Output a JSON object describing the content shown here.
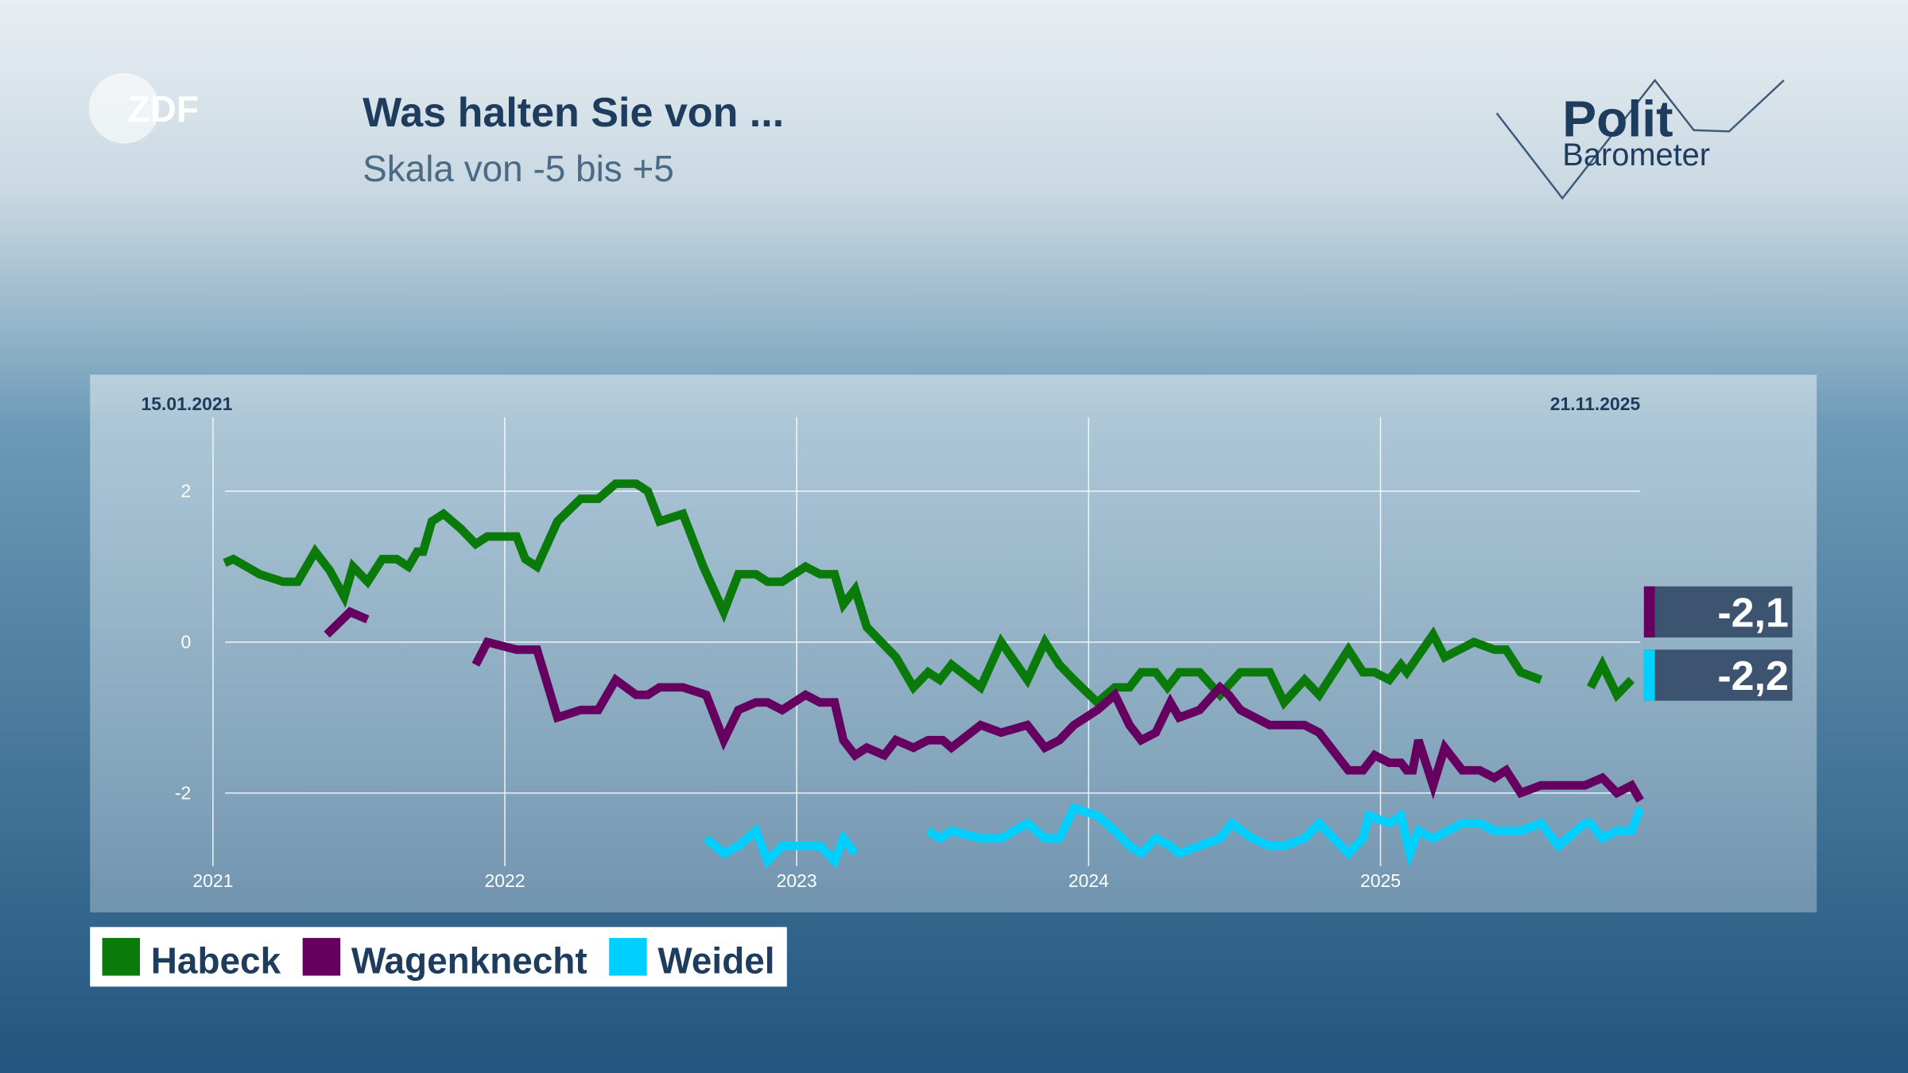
{
  "branding": {
    "broadcaster": "ZDF",
    "program_line1": "Polit",
    "program_line2": "Barometer"
  },
  "chart_data": {
    "type": "line",
    "title": "Was halten Sie von ...",
    "subtitle": "Skala von -5 bis +5",
    "start_date": "15.01.2021",
    "end_date": "21.11.2025",
    "xlim": [
      2021,
      2025.89
    ],
    "xticks": [
      2021,
      2022,
      2023,
      2024,
      2025
    ],
    "ylim": [
      -2.97,
      2.98
    ],
    "yticks": [
      -2,
      0,
      2
    ],
    "grid": true,
    "legend": "below-left",
    "series": [
      {
        "name": "Habeck",
        "color": "#0a7a0a",
        "x": [
          2021.04,
          2021.07,
          2021.16,
          2021.24,
          2021.29,
          2021.35,
          2021.4,
          2021.45,
          2021.48,
          2021.53,
          2021.58,
          2021.63,
          2021.67,
          2021.7,
          2021.72,
          2021.75,
          2021.79,
          2021.85,
          2021.9,
          2021.94,
          2022.04,
          2022.07,
          2022.11,
          2022.18,
          2022.26,
          2022.32,
          2022.38,
          2022.45,
          2022.49,
          2022.53,
          2022.61,
          2022.68,
          2022.75,
          2022.8,
          2022.86,
          2022.9,
          2022.95,
          2023.03,
          2023.08,
          2023.13,
          2023.16,
          2023.2,
          2023.24,
          2023.29,
          2023.34,
          2023.4,
          2023.45,
          2023.49,
          2023.53,
          2023.63,
          2023.7,
          2023.79,
          2023.85,
          2023.9,
          2023.95,
          2024.03,
          2024.09,
          2024.14,
          2024.18,
          2024.23,
          2024.27,
          2024.31,
          2024.38,
          2024.45,
          2024.52,
          2024.62,
          2024.67,
          2024.74,
          2024.79,
          2024.89,
          2024.94,
          2024.98,
          2025.03,
          2025.07,
          2025.09,
          2025.18,
          2025.22,
          2025.32,
          2025.39,
          2025.43,
          2025.48,
          2025.55,
          2025.63,
          2025.72,
          2025.76,
          2025.81,
          2025.86
        ],
        "values": [
          1.05,
          1.1,
          0.9,
          0.8,
          0.8,
          1.2,
          0.95,
          0.6,
          1.0,
          0.8,
          1.1,
          1.1,
          1.0,
          1.2,
          1.2,
          1.6,
          1.7,
          1.5,
          1.3,
          1.4,
          1.4,
          1.1,
          1.0,
          1.6,
          1.9,
          1.9,
          2.1,
          2.1,
          2.0,
          1.6,
          1.7,
          1.0,
          0.4,
          0.9,
          0.9,
          0.8,
          0.8,
          1.0,
          0.9,
          0.9,
          0.5,
          0.7,
          0.2,
          0.0,
          -0.2,
          -0.6,
          -0.4,
          -0.5,
          -0.3,
          -0.6,
          0.0,
          -0.5,
          0.0,
          -0.3,
          -0.5,
          -0.8,
          -0.6,
          -0.6,
          -0.4,
          -0.4,
          -0.6,
          -0.4,
          -0.4,
          -0.7,
          -0.4,
          -0.4,
          -0.8,
          -0.5,
          -0.7,
          -0.1,
          -0.4,
          -0.4,
          -0.5,
          -0.3,
          -0.4,
          0.1,
          -0.2,
          0.0,
          -0.1,
          -0.1,
          -0.4,
          -0.5,
          null,
          -0.6,
          -0.3,
          -0.7,
          -0.5
        ]
      },
      {
        "name": "Wagenknecht",
        "color": "#650060",
        "x": [
          2021.39,
          2021.47,
          2021.53,
          2021.7,
          2021.9,
          2021.94,
          2022.04,
          2022.11,
          2022.18,
          2022.26,
          2022.32,
          2022.38,
          2022.45,
          2022.49,
          2022.53,
          2022.61,
          2022.69,
          2022.75,
          2022.8,
          2022.86,
          2022.9,
          2022.95,
          2023.03,
          2023.08,
          2023.13,
          2023.16,
          2023.2,
          2023.24,
          2023.3,
          2023.34,
          2023.4,
          2023.45,
          2023.5,
          2023.53,
          2023.63,
          2023.7,
          2023.79,
          2023.85,
          2023.9,
          2023.95,
          2024.03,
          2024.09,
          2024.14,
          2024.18,
          2024.23,
          2024.28,
          2024.31,
          2024.38,
          2024.45,
          2024.48,
          2024.52,
          2024.62,
          2024.74,
          2024.79,
          2024.89,
          2024.94,
          2024.98,
          2025.03,
          2025.07,
          2025.09,
          2025.11,
          2025.13,
          2025.18,
          2025.22,
          2025.28,
          2025.34,
          2025.39,
          2025.43,
          2025.48,
          2025.55,
          2025.7,
          2025.76,
          2025.81,
          2025.86,
          2025.89
        ],
        "values": [
          0.1,
          0.4,
          0.3,
          null,
          -0.3,
          0.0,
          -0.1,
          -0.1,
          -1.0,
          -0.9,
          -0.9,
          -0.5,
          -0.7,
          -0.7,
          -0.6,
          -0.6,
          -0.7,
          -1.3,
          -0.9,
          -0.8,
          -0.8,
          -0.9,
          -0.7,
          -0.8,
          -0.8,
          -1.3,
          -1.5,
          -1.4,
          -1.5,
          -1.3,
          -1.4,
          -1.3,
          -1.3,
          -1.4,
          -1.1,
          -1.2,
          -1.1,
          -1.4,
          -1.3,
          -1.1,
          -0.9,
          -0.7,
          -1.1,
          -1.3,
          -1.2,
          -0.8,
          -1.0,
          -0.9,
          -0.6,
          -0.7,
          -0.9,
          -1.1,
          -1.1,
          -1.2,
          -1.7,
          -1.7,
          -1.5,
          -1.6,
          -1.6,
          -1.7,
          -1.7,
          -1.3,
          -1.9,
          -1.4,
          -1.7,
          -1.7,
          -1.8,
          -1.7,
          -2.0,
          -1.9,
          -1.9,
          -1.8,
          -2.0,
          -1.9,
          -2.1
        ],
        "end_label": {
          "value": -2.1,
          "label": "-2,1"
        }
      },
      {
        "name": "Weidel",
        "color": "#00cfff",
        "x": [
          2022.69,
          2022.75,
          2022.8,
          2022.86,
          2022.9,
          2022.95,
          2023.03,
          2023.08,
          2023.13,
          2023.16,
          2023.2,
          2023.33,
          2023.45,
          2023.49,
          2023.53,
          2023.63,
          2023.7,
          2023.79,
          2023.85,
          2023.9,
          2023.95,
          2024.03,
          2024.09,
          2024.14,
          2024.18,
          2024.23,
          2024.28,
          2024.31,
          2024.38,
          2024.45,
          2024.49,
          2024.56,
          2024.62,
          2024.67,
          2024.74,
          2024.79,
          2024.89,
          2024.94,
          2024.96,
          2025.03,
          2025.07,
          2025.1,
          2025.13,
          2025.18,
          2025.28,
          2025.34,
          2025.39,
          2025.48,
          2025.55,
          2025.61,
          2025.7,
          2025.72,
          2025.76,
          2025.81,
          2025.86,
          2025.89
        ],
        "values": [
          -2.6,
          -2.8,
          -2.7,
          -2.5,
          -2.9,
          -2.7,
          -2.7,
          -2.7,
          -2.9,
          -2.6,
          -2.8,
          null,
          -2.5,
          -2.6,
          -2.5,
          -2.6,
          -2.6,
          -2.4,
          -2.6,
          -2.6,
          -2.2,
          -2.3,
          -2.5,
          -2.7,
          -2.8,
          -2.6,
          -2.7,
          -2.8,
          -2.7,
          -2.6,
          -2.4,
          -2.6,
          -2.7,
          -2.7,
          -2.6,
          -2.4,
          -2.8,
          -2.6,
          -2.3,
          -2.4,
          -2.3,
          -2.8,
          -2.5,
          -2.6,
          -2.4,
          -2.4,
          -2.5,
          -2.5,
          -2.4,
          -2.7,
          -2.4,
          -2.4,
          -2.6,
          -2.5,
          -2.5,
          -2.2
        ],
        "end_label": {
          "value": -2.2,
          "label": "-2,2"
        }
      }
    ]
  }
}
